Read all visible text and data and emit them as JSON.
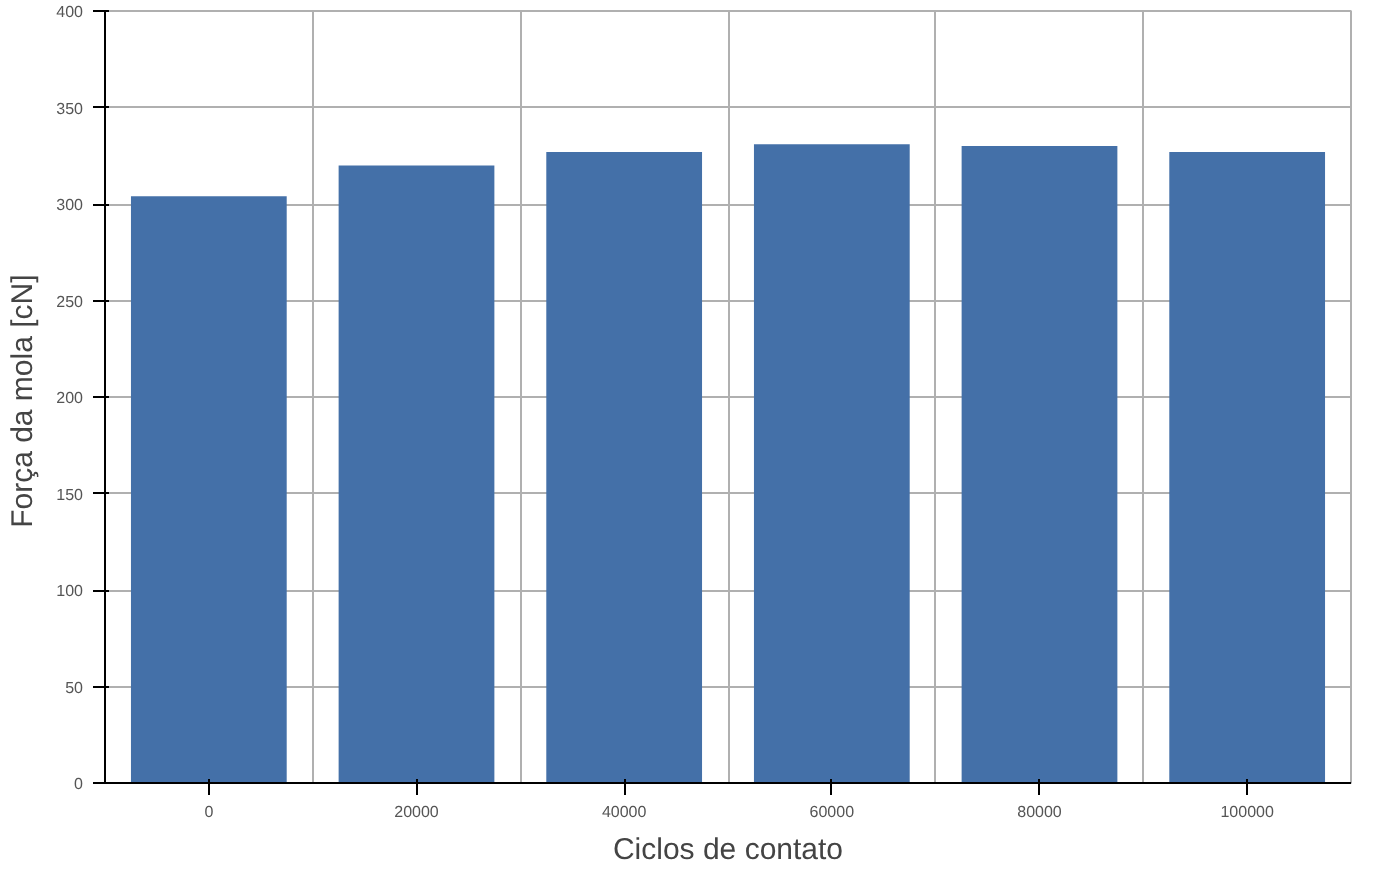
{
  "chart_data": {
    "type": "bar",
    "xlabel": "Ciclos de contato",
    "ylabel": "Força da mola  [cN]",
    "categories": [
      "0",
      "20000",
      "40000",
      "60000",
      "80000",
      "100000"
    ],
    "values": [
      304,
      320,
      327,
      331,
      330,
      327
    ],
    "color": "#4470a8",
    "ylim": [
      0,
      400
    ],
    "yticks": [
      0,
      50,
      100,
      150,
      200,
      250,
      300,
      350,
      400
    ],
    "grid": true
  }
}
